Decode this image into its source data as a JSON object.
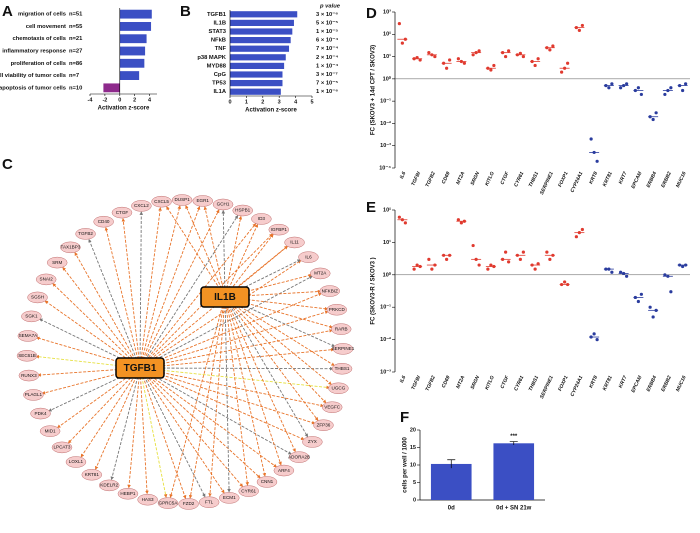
{
  "chart_data": [
    {
      "type": "hbar",
      "panel": "A",
      "categories": [
        "migration of cells",
        "cell movement",
        "chemotaxis of cells",
        "inflammatory response",
        "proliferation of cells",
        "cell viability of tumor cells",
        "apoptosis of tumor cells"
      ],
      "annotations": [
        "n=51",
        "n=55",
        "n=21",
        "n=27",
        "n=86",
        "n=7",
        "n=10"
      ],
      "values": [
        4.3,
        4.2,
        3.6,
        3.4,
        3.3,
        2.6,
        -2.2
      ],
      "colors": [
        "#3b4fc4",
        "#3b4fc4",
        "#3b4fc4",
        "#3b4fc4",
        "#3b4fc4",
        "#3b4fc4",
        "#8e2a8c"
      ],
      "xlabel": "Activation z-score",
      "xlim": [
        -4,
        5
      ],
      "xticks": [
        -4,
        -2,
        0,
        2,
        4
      ]
    },
    {
      "type": "hbar",
      "panel": "B",
      "categories": [
        "TGFB1",
        "IL1B",
        "STAT3",
        "NFkB",
        "TNF",
        "p38 MAPK",
        "MYD88",
        "CpG",
        "TP53",
        "IL1A"
      ],
      "values": [
        4.1,
        3.9,
        3.8,
        3.7,
        3.6,
        3.4,
        3.3,
        3.2,
        3.2,
        3.1
      ],
      "color": "#3b4fc4",
      "column_header": "p value",
      "annotations": [
        "3 × 10⁻⁶",
        "5 × 10⁻⁵",
        "1 × 10⁻⁵",
        "6 × 10⁻⁴",
        "7 × 10⁻⁴",
        "2 × 10⁻⁴",
        "1 × 10⁻⁴",
        "3 × 10⁻⁷",
        "7 × 10⁻⁵",
        "1 × 10⁻⁶"
      ],
      "xlabel": "Activation z-score",
      "xlim": [
        0,
        5
      ],
      "xticks": [
        0,
        1,
        2,
        3,
        4,
        5
      ]
    },
    {
      "type": "dot",
      "panel": "D",
      "log_scale": true,
      "reference_line": 1,
      "ylabel": "FC (SKOV3 + 14d CPT / SKOV3)",
      "categories": [
        "IL6",
        "TGFBI",
        "TGFB2",
        "CD69",
        "MT2A",
        "SRGN",
        "KITLG",
        "CTGF",
        "CYR61",
        "THBS1",
        "SERPINE1",
        "FOXP1",
        "CYP24A1",
        "KRT8",
        "KRT81",
        "KRT7",
        "EPCAM",
        "ERBB4",
        "ERBB2",
        "MUC16"
      ],
      "colors": [
        "#e03a2f",
        "#e03a2f",
        "#e03a2f",
        "#e03a2f",
        "#e03a2f",
        "#e03a2f",
        "#e03a2f",
        "#e03a2f",
        "#e03a2f",
        "#e03a2f",
        "#e03a2f",
        "#e03a2f",
        "#e03a2f",
        "#2a3c9e",
        "#2a3c9e",
        "#2a3c9e",
        "#2a3c9e",
        "#2a3c9e",
        "#2a3c9e",
        "#2a3c9e"
      ],
      "values": [
        [
          300,
          40,
          60
        ],
        [
          8,
          9,
          7
        ],
        [
          15,
          12,
          10
        ],
        [
          5,
          3,
          7
        ],
        [
          8,
          6,
          5
        ],
        [
          12,
          15,
          18
        ],
        [
          3,
          2.5,
          4
        ],
        [
          15,
          10,
          18
        ],
        [
          12,
          14,
          10
        ],
        [
          6,
          4,
          8
        ],
        [
          25,
          20,
          30
        ],
        [
          2,
          3,
          5
        ],
        [
          200,
          150,
          250
        ],
        [
          0.002,
          0.0005,
          0.0002
        ],
        [
          0.5,
          0.4,
          0.6
        ],
        [
          0.4,
          0.5,
          0.6
        ],
        [
          0.3,
          0.4,
          0.2
        ],
        [
          0.02,
          0.015,
          0.03
        ],
        [
          0.2,
          0.3,
          0.4
        ],
        [
          0.5,
          0.3,
          0.6
        ]
      ],
      "ylim": [
        0.0001,
        1000
      ],
      "yticks": [
        {
          "value": 0.0001,
          "label": "10⁻⁴"
        },
        {
          "value": 0.001,
          "label": "10⁻³"
        },
        {
          "value": 0.01,
          "label": "10⁻²"
        },
        {
          "value": 0.1,
          "label": "10⁻¹"
        },
        {
          "value": 1,
          "label": "10⁰"
        },
        {
          "value": 10,
          "label": "10¹"
        },
        {
          "value": 100,
          "label": "10²"
        },
        {
          "value": 1000,
          "label": "10³"
        }
      ]
    },
    {
      "type": "dot",
      "panel": "E",
      "log_scale": true,
      "reference_line": 1,
      "ylabel": "FC (SKOV3-R / SKOV3 )",
      "categories": [
        "IL6",
        "TGFBI",
        "TGFB2",
        "CD69",
        "MT2A",
        "SRGN",
        "KITLG",
        "CTGF",
        "CYR61",
        "THBS1",
        "SERPINE1",
        "FOXP1",
        "CYP24A1",
        "KRT8",
        "KRT81",
        "KRT7",
        "EPCAM",
        "ERBB4",
        "ERBB2",
        "MUC16"
      ],
      "colors": [
        "#e03a2f",
        "#e03a2f",
        "#e03a2f",
        "#e03a2f",
        "#e03a2f",
        "#e03a2f",
        "#e03a2f",
        "#e03a2f",
        "#e03a2f",
        "#e03a2f",
        "#e03a2f",
        "#e03a2f",
        "#e03a2f",
        "#2a3c9e",
        "#2a3c9e",
        "#2a3c9e",
        "#2a3c9e",
        "#2a3c9e",
        "#2a3c9e",
        "#2a3c9e"
      ],
      "values": [
        [
          60,
          50,
          40
        ],
        [
          1.5,
          2,
          1.8
        ],
        [
          3,
          1.5,
          2
        ],
        [
          4,
          3,
          4
        ],
        [
          50,
          40,
          45
        ],
        [
          8,
          3,
          2
        ],
        [
          1.5,
          2,
          1.8
        ],
        [
          3,
          5,
          2.5
        ],
        [
          4,
          3,
          5
        ],
        [
          2,
          1.5,
          2.2
        ],
        [
          5,
          3,
          4
        ],
        [
          0.5,
          0.6,
          0.5
        ],
        [
          15,
          20,
          25
        ],
        [
          0.012,
          0.015,
          0.01
        ],
        [
          1.5,
          1.5,
          1.2
        ],
        [
          1.2,
          1.1,
          0.9
        ],
        [
          0.2,
          0.15,
          0.25
        ],
        [
          0.1,
          0.05,
          0.08
        ],
        [
          1,
          0.9,
          0.3
        ],
        [
          2,
          1.8,
          2
        ]
      ],
      "ylim": [
        0.001,
        100
      ],
      "yticks": [
        {
          "value": 0.001,
          "label": "10⁻³"
        },
        {
          "value": 0.01,
          "label": "10⁻²"
        },
        {
          "value": 0.1,
          "label": "10⁻¹"
        },
        {
          "value": 1,
          "label": "10⁰"
        },
        {
          "value": 10,
          "label": "10¹"
        },
        {
          "value": 100,
          "label": "10²"
        }
      ]
    },
    {
      "type": "bar",
      "panel": "F",
      "ylabel": "cells per well / 1000",
      "categories": [
        "0d",
        "0d + SN 21w"
      ],
      "values": [
        10.3,
        16.2
      ],
      "errors": [
        1.2,
        0.5
      ],
      "color": "#3b4fc4",
      "annotation": "***",
      "ylim": [
        0,
        20
      ],
      "yticks": [
        0,
        5,
        10,
        15,
        20
      ]
    }
  ],
  "network": {
    "panel": "C",
    "hubs": [
      "TGFB1",
      "IL1B"
    ],
    "nodes": [
      "CD40",
      "CTGF",
      "CXCL2",
      "CXCL5",
      "DUSP1",
      "EGR1",
      "GCH1",
      "HSPB1",
      "ID3",
      "IGFBP1",
      "IL11",
      "IL6",
      "MT2A",
      "NFKBIZ",
      "PRKCD",
      "RARB",
      "SERPINE1",
      "THBS1",
      "UGCG",
      "VEGFC",
      "ZFP36",
      "ZYX",
      "ADORA2B",
      "ARF4",
      "CNN1",
      "CYR61",
      "ECM1",
      "FTL",
      "FZD2",
      "GPRC5A",
      "HAS3",
      "HEBP1",
      "KDELR2",
      "KRT81",
      "LOXL1",
      "LPCAT3",
      "MID1",
      "PDK4",
      "PLAGL1",
      "RUNX3",
      "SEC61B",
      "SEMA7A",
      "SGK1",
      "SGSH",
      "SNAI2",
      "SRM",
      "TAX1BP3",
      "TGFB2"
    ]
  }
}
